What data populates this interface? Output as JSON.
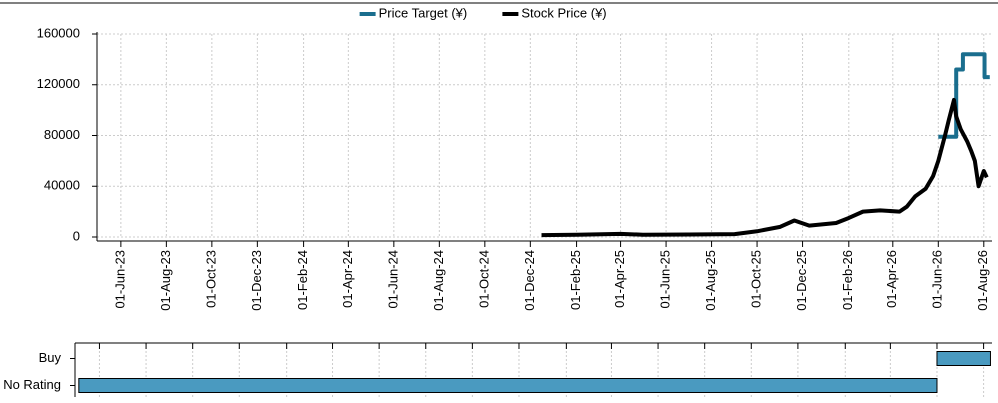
{
  "chart_data": [
    {
      "type": "line",
      "legend": "top",
      "grid": true,
      "ylim": [
        0,
        160000
      ],
      "yticks": [
        0,
        40000,
        80000,
        120000,
        160000
      ],
      "xlim": [
        "2023-04-30",
        "2026-08-12"
      ],
      "xticks": [
        {
          "value": "2023-06-01",
          "label": "01-Jun-23"
        },
        {
          "value": "2023-08-01",
          "label": "01-Aug-23"
        },
        {
          "value": "2023-10-01",
          "label": "01-Oct-23"
        },
        {
          "value": "2023-12-01",
          "label": "01-Dec-23"
        },
        {
          "value": "2024-02-01",
          "label": "01-Feb-24"
        },
        {
          "value": "2024-04-01",
          "label": "01-Apr-24"
        },
        {
          "value": "2024-06-01",
          "label": "01-Jun-24"
        },
        {
          "value": "2024-08-01",
          "label": "01-Aug-24"
        },
        {
          "value": "2024-10-01",
          "label": "01-Oct-24"
        },
        {
          "value": "2024-12-01",
          "label": "01-Dec-24"
        },
        {
          "value": "2025-02-01",
          "label": "01-Feb-25"
        },
        {
          "value": "2025-04-01",
          "label": "01-Apr-25"
        },
        {
          "value": "2025-06-01",
          "label": "01-Jun-25"
        },
        {
          "value": "2025-08-01",
          "label": "01-Aug-25"
        },
        {
          "value": "2025-10-01",
          "label": "01-Oct-25"
        },
        {
          "value": "2025-12-01",
          "label": "01-Dec-25"
        },
        {
          "value": "2026-02-01",
          "label": "01-Feb-26"
        },
        {
          "value": "2026-04-01",
          "label": "01-Apr-26"
        },
        {
          "value": "2026-06-01",
          "label": "01-Jun-26"
        },
        {
          "value": "2026-08-01",
          "label": "01-Aug-26"
        }
      ],
      "series": [
        {
          "name": "Price Target (¥)",
          "color": "#1a6e8e",
          "step": "post",
          "x": [
            "2026-06-01",
            "2026-06-25",
            "2026-07-04",
            "2026-08-02",
            "2026-08-09"
          ],
          "values": [
            79000,
            132000,
            144000,
            126000,
            126000
          ]
        },
        {
          "name": "Stock Price (¥)",
          "color": "#000000",
          "x": [
            "2024-12-16",
            "2025-02-01",
            "2025-04-01",
            "2025-05-01",
            "2025-07-01",
            "2025-09-01",
            "2025-10-01",
            "2025-11-01",
            "2025-11-20",
            "2025-12-10",
            "2026-01-15",
            "2026-02-01",
            "2026-02-20",
            "2026-03-15",
            "2026-04-10",
            "2026-04-20",
            "2026-05-01",
            "2026-05-15",
            "2026-05-25",
            "2026-06-01",
            "2026-06-10",
            "2026-06-15",
            "2026-06-22",
            "2026-06-25",
            "2026-07-01",
            "2026-07-10",
            "2026-07-15",
            "2026-07-20",
            "2026-07-25",
            "2026-08-01",
            "2026-08-05"
          ],
          "values": [
            1500,
            1800,
            2500,
            1800,
            2000,
            2300,
            4500,
            8000,
            13000,
            9000,
            11000,
            15000,
            20000,
            21000,
            20000,
            24000,
            32000,
            38000,
            48000,
            60000,
            80000,
            92000,
            108000,
            95000,
            85000,
            75000,
            68000,
            60000,
            40000,
            52000,
            47000
          ]
        }
      ]
    },
    {
      "type": "timeline",
      "color": "#4a9ac0",
      "xlim": [
        "2023-04-30",
        "2026-08-12"
      ],
      "xticks": [
        "2023-06-01",
        "2023-08-01",
        "2023-10-01",
        "2023-12-01",
        "2024-02-01",
        "2024-04-01",
        "2024-06-01",
        "2024-08-01",
        "2024-10-01",
        "2024-12-01",
        "2025-02-01",
        "2025-04-01",
        "2025-06-01",
        "2025-08-01",
        "2025-10-01",
        "2025-12-01",
        "2026-02-01",
        "2026-04-01",
        "2026-06-01",
        "2026-08-01"
      ],
      "categories": [
        "Buy",
        "No Rating"
      ],
      "values": [
        [
          "2026-06-01",
          "2026-08-10"
        ],
        [
          "2023-05-05",
          "2026-06-01"
        ]
      ]
    }
  ]
}
